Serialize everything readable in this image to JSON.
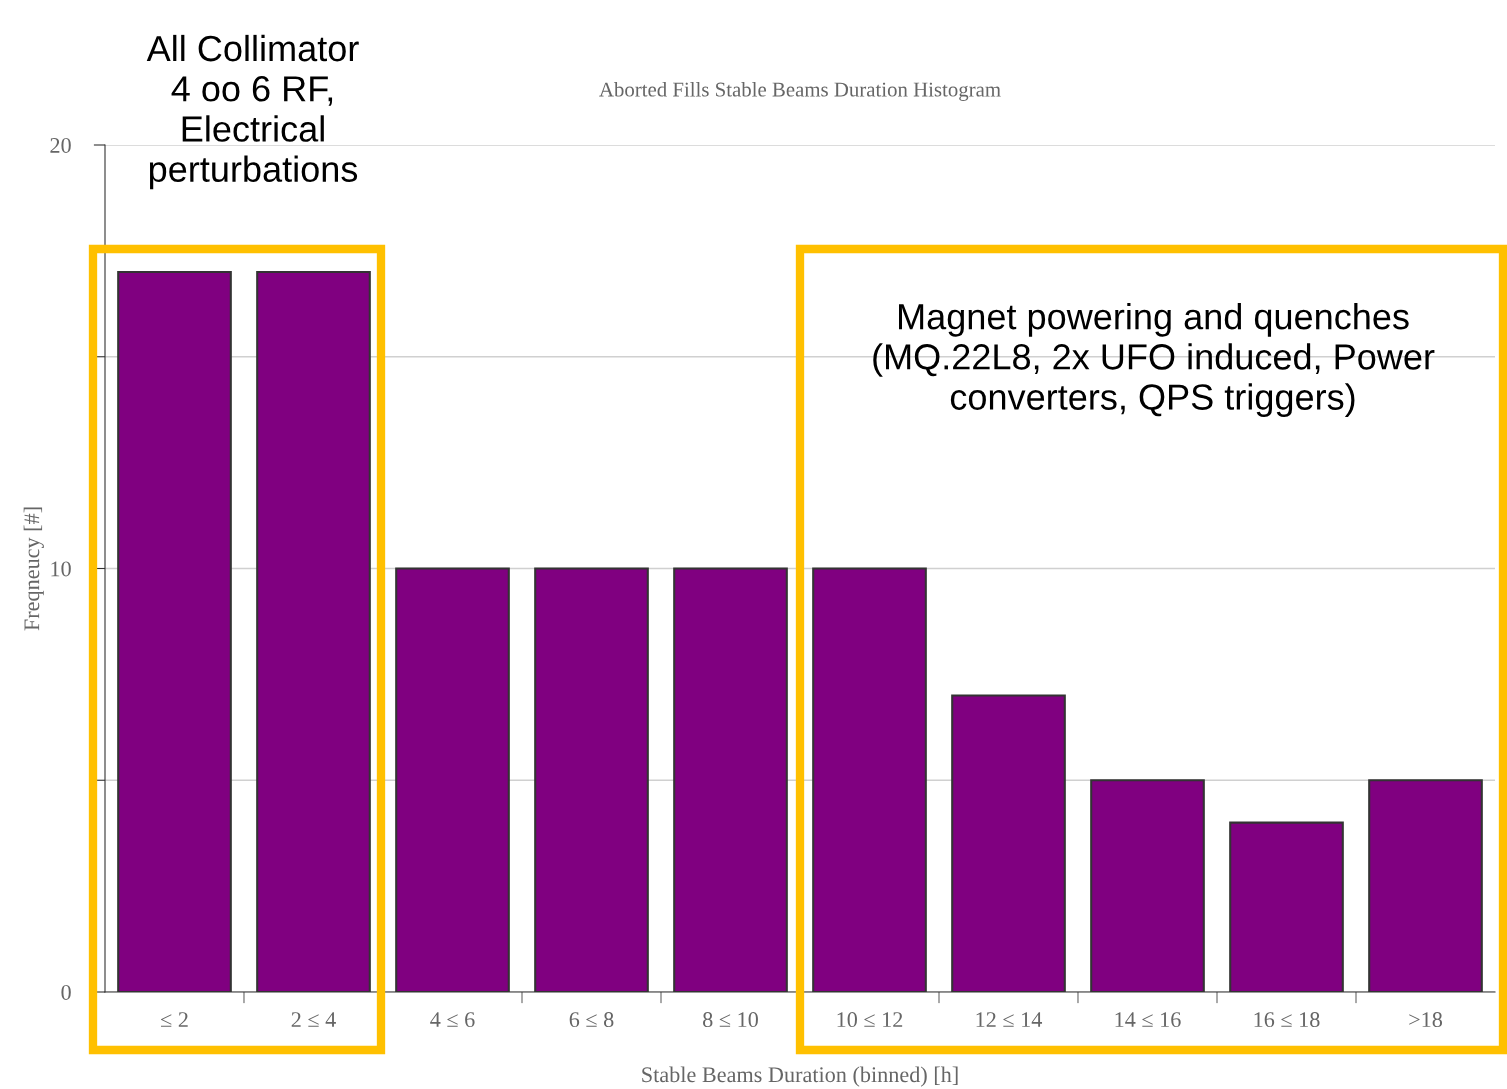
{
  "chart_data": {
    "type": "bar",
    "title": "Aborted Fills Stable Beams Duration Histogram",
    "xlabel": "Stable Beams Duration (binned) [h]",
    "ylabel": "Freqneucy [#]",
    "categories": [
      "≤ 2",
      "2 ≤ 4",
      "4 ≤ 6",
      "6 ≤ 8",
      "8 ≤ 10",
      "10 ≤ 12",
      "12 ≤ 14",
      "14 ≤ 16",
      "16 ≤ 18",
      ">18"
    ],
    "values": [
      17,
      17,
      10,
      10,
      10,
      10,
      7,
      5,
      4,
      5
    ],
    "color": "#800080",
    "ylim": [
      0,
      20
    ],
    "yticks": [
      0,
      {
        "value": 5,
        "label": null
      },
      10,
      {
        "value": 15,
        "label": null
      },
      20
    ],
    "grid": "y",
    "annotations": [
      "All Collimator\n4 oo 6 RF,\nElectrical\nperturbations",
      "Magnet powering and quenches\n(MQ.22L8, 2x UFO induced, Power\nconverters, QPS triggers)"
    ]
  }
}
